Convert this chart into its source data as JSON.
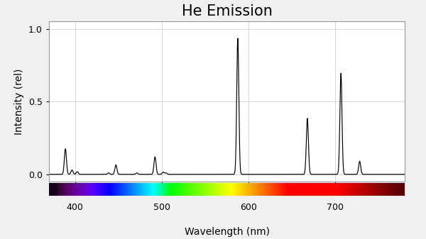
{
  "title": "He Emission",
  "xlabel": "Wavelength (nm)",
  "ylabel": "Intensity (rel)",
  "xlim": [
    370,
    780
  ],
  "ylim": [
    -0.05,
    1.05
  ],
  "yticks": [
    0.0,
    0.5,
    1.0
  ],
  "xticks": [
    400,
    500,
    600,
    700
  ],
  "background_color": "#f0f0f0",
  "axes_background": "#ffffff",
  "grid_color": "#d0d0d0",
  "line_color": "#000000",
  "title_fontsize": 15,
  "label_fontsize": 10,
  "tick_fontsize": 9,
  "emission_lines": [
    {
      "wavelength": 388.9,
      "intensity": 0.175
    },
    {
      "wavelength": 396.5,
      "intensity": 0.03
    },
    {
      "wavelength": 402.6,
      "intensity": 0.018
    },
    {
      "wavelength": 438.8,
      "intensity": 0.01
    },
    {
      "wavelength": 447.1,
      "intensity": 0.065
    },
    {
      "wavelength": 471.3,
      "intensity": 0.01
    },
    {
      "wavelength": 492.2,
      "intensity": 0.12
    },
    {
      "wavelength": 501.6,
      "intensity": 0.015
    },
    {
      "wavelength": 504.8,
      "intensity": 0.01
    },
    {
      "wavelength": 587.6,
      "intensity": 0.935
    },
    {
      "wavelength": 667.8,
      "intensity": 0.385
    },
    {
      "wavelength": 706.5,
      "intensity": 0.695
    },
    {
      "wavelength": 728.1,
      "intensity": 0.09
    }
  ]
}
